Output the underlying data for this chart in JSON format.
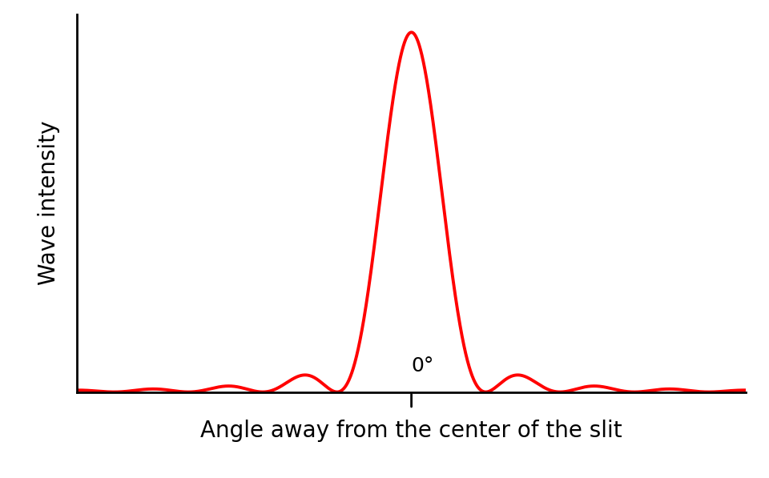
{
  "xlabel": "Angle away from the center of the slit",
  "ylabel": "Wave intensity",
  "line_color": "#ff0000",
  "line_width": 2.8,
  "background_color": "#ffffff",
  "xlabel_fontsize": 20,
  "ylabel_fontsize": 20,
  "annotation_text": "0°",
  "annotation_fontsize": 18,
  "x_range": [
    -4.5,
    4.5
  ],
  "y_range": [
    0,
    1.05
  ]
}
